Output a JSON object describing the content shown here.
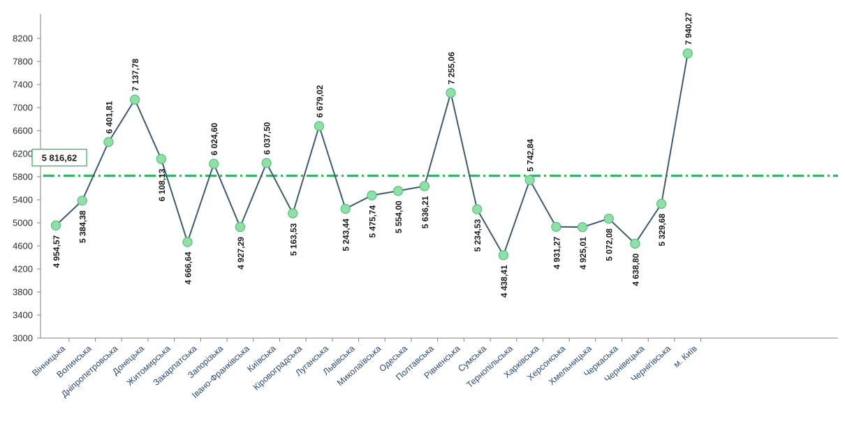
{
  "chart_data": {
    "type": "line",
    "categories": [
      "Вінницька",
      "Волинська",
      "Дніпропетровська",
      "Донецька",
      "Житомирська",
      "Закарпатська",
      "Запорізька",
      "Івано-Франківська",
      "Київська",
      "Кіровоградська",
      "Луганська",
      "Львівська",
      "Миколаївська",
      "Одеська",
      "Полтавська",
      "Рівненська",
      "Сумська",
      "Тернопільська",
      "Харківська",
      "Херсонська",
      "Хмельницька",
      "Черкаська",
      "Чернівецька",
      "Чернігівська",
      "м. Київ"
    ],
    "values": [
      4954.57,
      5384.38,
      6401.81,
      7137.78,
      6108.13,
      4666.64,
      6024.6,
      4927.29,
      6037.5,
      5163.53,
      6679.02,
      5243.44,
      5475.74,
      5554.0,
      5636.21,
      7255.06,
      5234.53,
      4438.41,
      5742.84,
      4931.27,
      4925.01,
      5072.08,
      4638.8,
      5329.68,
      7940.27
    ],
    "data_labels": [
      "4 954,57",
      "5 384,38",
      "6 401,81",
      "7 137,78",
      "6 108,13",
      "4 666,64",
      "6 024,60",
      "4 927,29",
      "6 037,50",
      "5 163,53",
      "6 679,02",
      "5 243,44",
      "5 475,74",
      "5 554,00",
      "5 636,21",
      "7 255,06",
      "5 234,53",
      "4 438,41",
      "5 742,84",
      "4 931,27",
      "4 925,01",
      "5 072,08",
      "4 638,80",
      "5 329,68",
      "7 940,27"
    ],
    "average": {
      "value": 5816.62,
      "label": "5 816,62"
    },
    "yticks": [
      "3000",
      "3400",
      "3800",
      "4200",
      "4600",
      "5000",
      "5400",
      "5800",
      "6200",
      "6600",
      "7000",
      "7400",
      "7800",
      "8200"
    ],
    "ylim": [
      3000,
      8400
    ],
    "title": "",
    "xlabel": "",
    "ylabel": "",
    "grid": false,
    "colors": {
      "line": "#3d5a73",
      "marker": "#8fe0a6",
      "marker_edge": "#52c178",
      "average": "#27b35a",
      "axis": "#7f7f7f"
    }
  }
}
